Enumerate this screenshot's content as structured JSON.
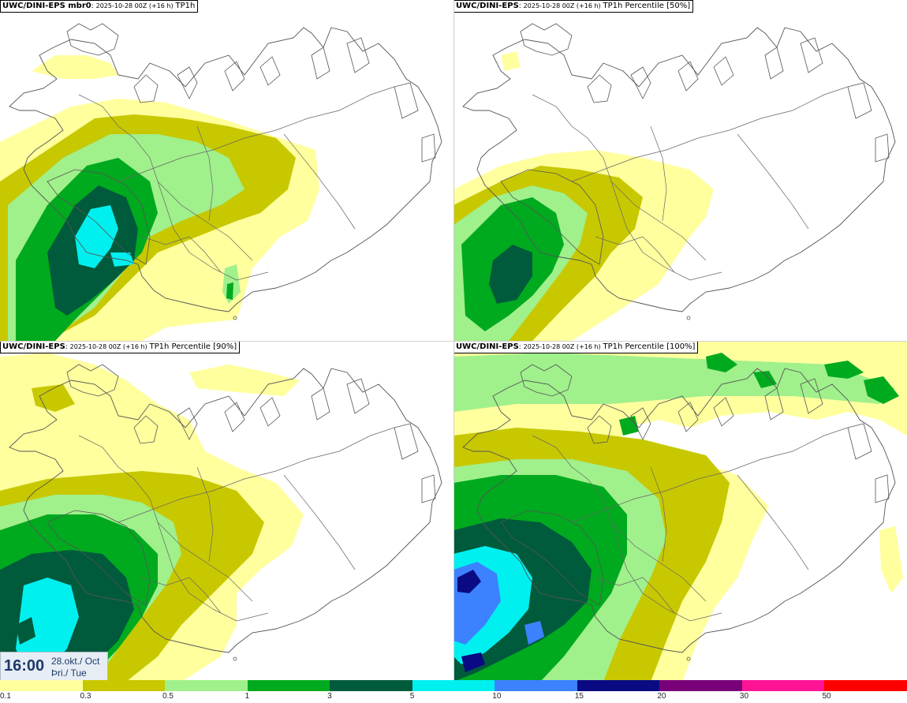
{
  "panels": [
    {
      "source": "UWC/DINI-EPS mbr0",
      "run": "2025-10-28 00Z (+16 h)",
      "field": "TP1h"
    },
    {
      "source": "UWC/DINI-EPS",
      "run": "2025-10-28 00Z (+16 h)",
      "field": "TP1h Percentile [50%]"
    },
    {
      "source": "UWC/DINI-EPS",
      "run": "2025-10-28 00Z (+16 h)",
      "field": "TP1h Percentile [90%]"
    },
    {
      "source": "UWC/DINI-EPS",
      "run": "2025-10-28 00Z (+16 h)",
      "field": "TP1h Percentile [100%]"
    }
  ],
  "valid_time": {
    "time": "16:00",
    "date_line": "28.okt./ Oct",
    "day_line": "Þri./ Tue"
  },
  "colorbar": {
    "labels": [
      "0.1",
      "0.3",
      "0.5",
      "1",
      "3",
      "5",
      "10",
      "15",
      "20",
      "30",
      "50"
    ],
    "colors": [
      "#ffff9e",
      "#c8c800",
      "#a0f08c",
      "#00aa1e",
      "#005a3c",
      "#00f0f0",
      "#3c82ff",
      "#0a0a82",
      "#780078",
      "#ff1496",
      "#ff0000"
    ]
  },
  "precip_colors": {
    "c01": "#ffff9e",
    "c03": "#c8c800",
    "c05": "#a0f08c",
    "c1": "#00aa1e",
    "c3": "#005a3c",
    "c5": "#00f0f0",
    "c10": "#3c82ff",
    "c15": "#0a0a82"
  }
}
